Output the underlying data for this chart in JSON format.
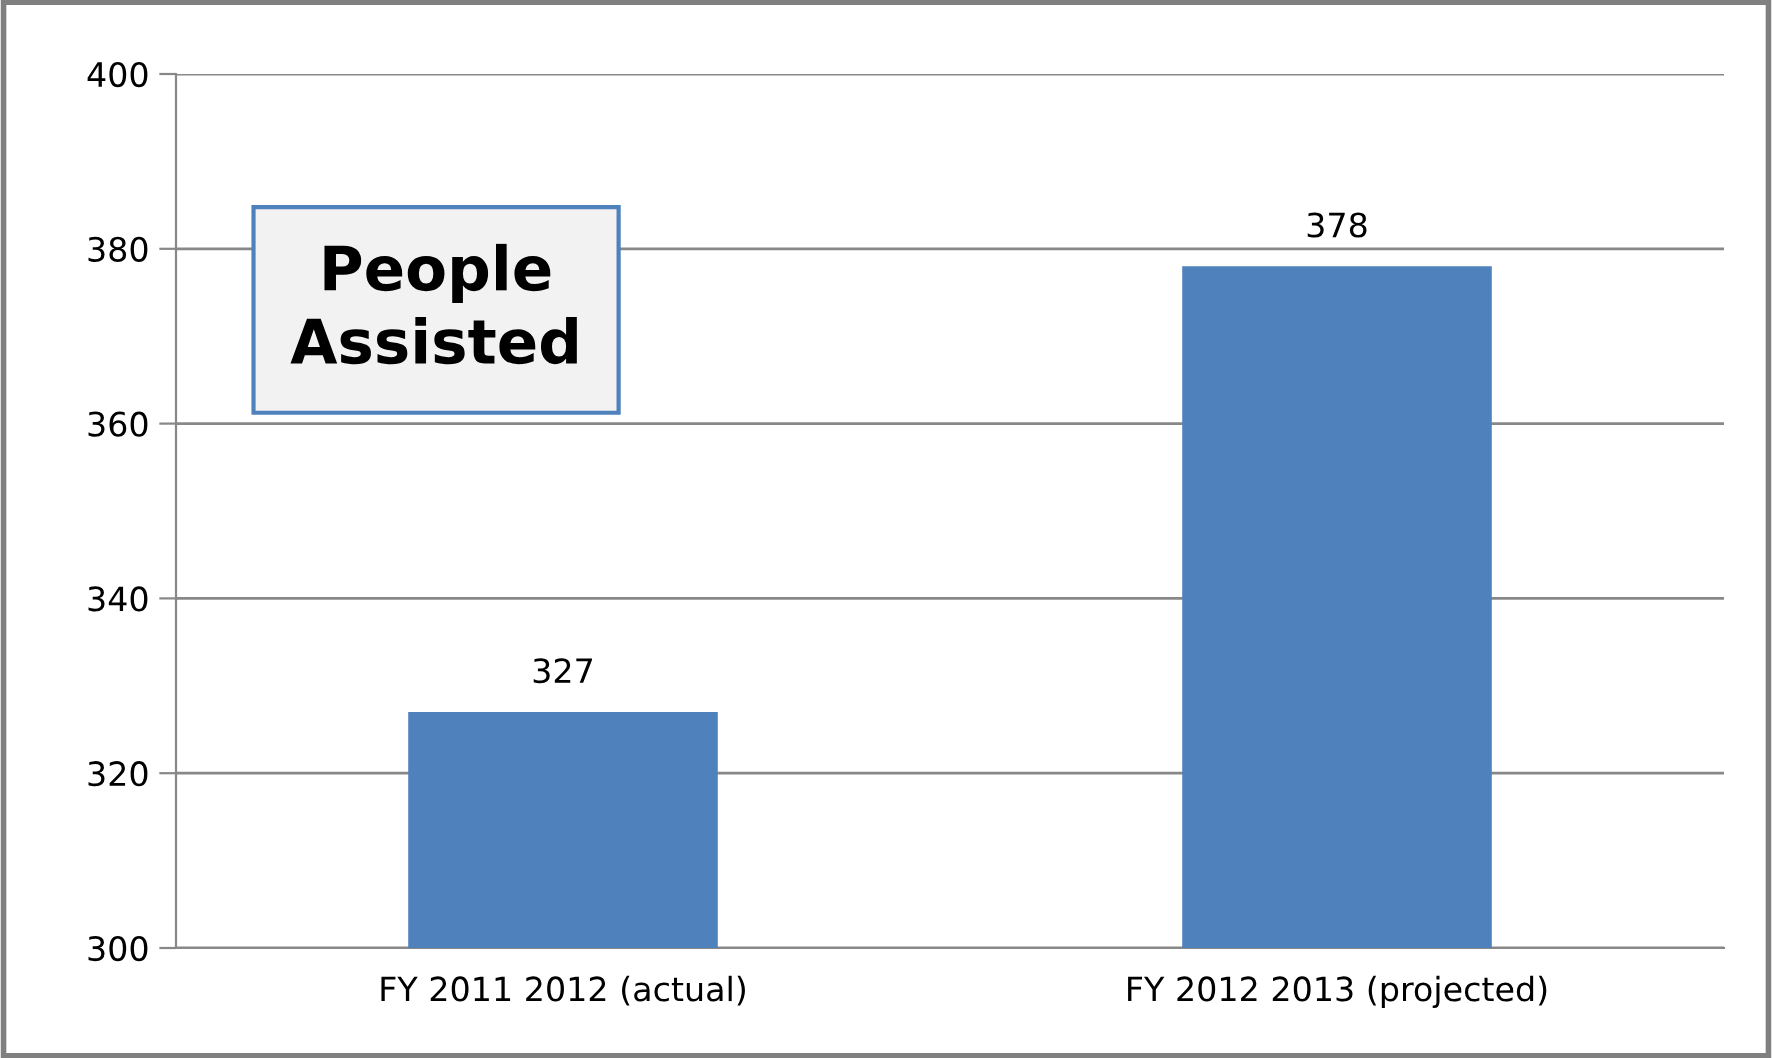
{
  "chart_data": {
    "type": "bar",
    "title": "People\nAssisted",
    "categories": [
      "FY 2011 2012 (actual)",
      "FY 2012 2013 (projected)"
    ],
    "values": [
      327,
      378
    ],
    "color": "#4f81bd",
    "ylim": [
      300,
      400
    ],
    "yticks": [
      300,
      320,
      340,
      360,
      380,
      400
    ],
    "grid": "y",
    "data_labels": true
  }
}
